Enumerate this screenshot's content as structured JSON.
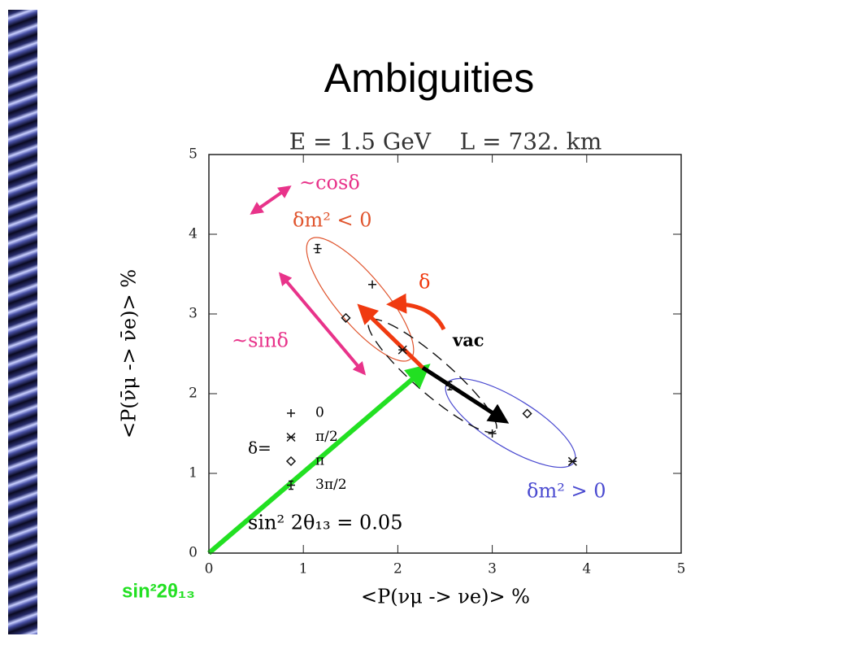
{
  "chart_data": {
    "type": "scatter",
    "title": "Ambiguities",
    "subtitle": "E = 1.5 GeV    L = 732. km",
    "x_label": "<P(νμ -> νe)> %",
    "y_label": "<P(ν̄μ -> ν̄e)> %",
    "xlim": [
      0,
      5
    ],
    "ylim": [
      0,
      5
    ],
    "xticks": [
      0,
      1,
      2,
      3,
      4,
      5
    ],
    "yticks": [
      0,
      1,
      2,
      3,
      4,
      5
    ],
    "legend": {
      "title": "δ=",
      "entries": [
        "0",
        "π/2",
        "π",
        "3π/2"
      ]
    },
    "series": [
      {
        "name": "δm² < 0",
        "color": "#e0552e",
        "x": [
          1.73,
          2.05,
          1.45,
          1.15
        ],
        "values": [
          3.37,
          2.55,
          2.95,
          3.82
        ]
      },
      {
        "name": "δm² > 0",
        "color": "#4a4ad0",
        "x": [
          3.0,
          3.85,
          3.37,
          2.55
        ],
        "values": [
          1.5,
          1.15,
          1.75,
          2.1
        ]
      }
    ],
    "annotations": [
      "~cosδ",
      "δ",
      "vac",
      "~sinδ",
      "sin² 2θ₁₃ = 0.05",
      "sin²2θ₁₃"
    ]
  }
}
